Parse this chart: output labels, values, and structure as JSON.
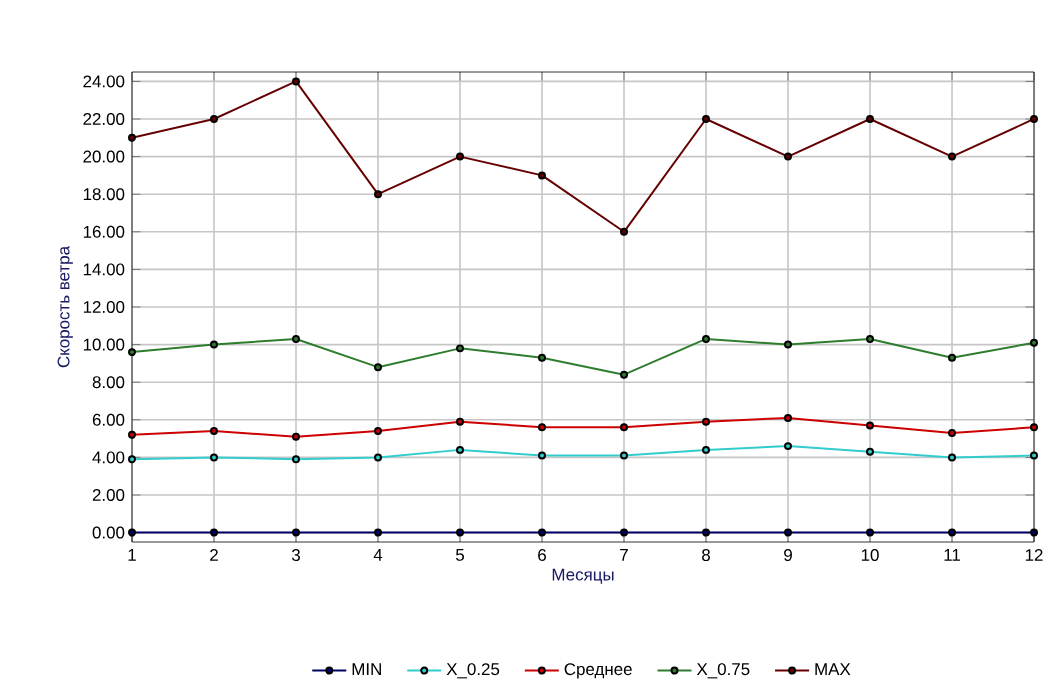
{
  "chart_data": {
    "type": "line",
    "xlabel": "Месяцы",
    "ylabel": "Скорость ветра",
    "x": [
      1,
      2,
      3,
      4,
      5,
      6,
      7,
      8,
      9,
      10,
      11,
      12
    ],
    "xlim": [
      1,
      12
    ],
    "xticks": [
      1,
      2,
      3,
      4,
      5,
      6,
      7,
      8,
      9,
      10,
      11,
      12
    ],
    "ylim": [
      -0.5,
      24.5
    ],
    "yticks": [
      {
        "value": 0,
        "label": "0.00"
      },
      {
        "value": 2,
        "label": "2.00"
      },
      {
        "value": 4,
        "label": "4.00"
      },
      {
        "value": 6,
        "label": "6.00"
      },
      {
        "value": 8,
        "label": "8.00"
      },
      {
        "value": 10,
        "label": "10.00"
      },
      {
        "value": 12,
        "label": "12.00"
      },
      {
        "value": 14,
        "label": "14.00"
      },
      {
        "value": 16,
        "label": "16.00"
      },
      {
        "value": 18,
        "label": "18.00"
      },
      {
        "value": 20,
        "label": "20.00"
      },
      {
        "value": 22,
        "label": "22.00"
      },
      {
        "value": 24,
        "label": "24.00"
      }
    ],
    "grid": true,
    "legend": "bottom",
    "marker": "circle",
    "line_style": "solid",
    "series": [
      {
        "name": "MIN",
        "color": "#000066",
        "values": [
          0,
          0,
          0,
          0,
          0,
          0,
          0,
          0,
          0,
          0,
          0,
          0
        ]
      },
      {
        "name": "X_0.25",
        "color": "#33cccc",
        "values": [
          3.9,
          4.0,
          3.9,
          4.0,
          4.4,
          4.1,
          4.1,
          4.4,
          4.6,
          4.3,
          4.0,
          4.1
        ]
      },
      {
        "name": "Среднее",
        "color": "#cc0000",
        "values": [
          5.2,
          5.4,
          5.1,
          5.4,
          5.9,
          5.6,
          5.6,
          5.9,
          6.1,
          5.7,
          5.3,
          5.6
        ]
      },
      {
        "name": "X_0.75",
        "color": "#2e7d2e",
        "values": [
          9.6,
          10.0,
          10.3,
          8.8,
          9.8,
          9.3,
          8.4,
          10.3,
          10.0,
          10.3,
          9.3,
          10.1
        ]
      },
      {
        "name": "MAX",
        "color": "#660000",
        "values": [
          21,
          22,
          24,
          18,
          20,
          19,
          16,
          22,
          20,
          22,
          20,
          22
        ]
      }
    ]
  }
}
